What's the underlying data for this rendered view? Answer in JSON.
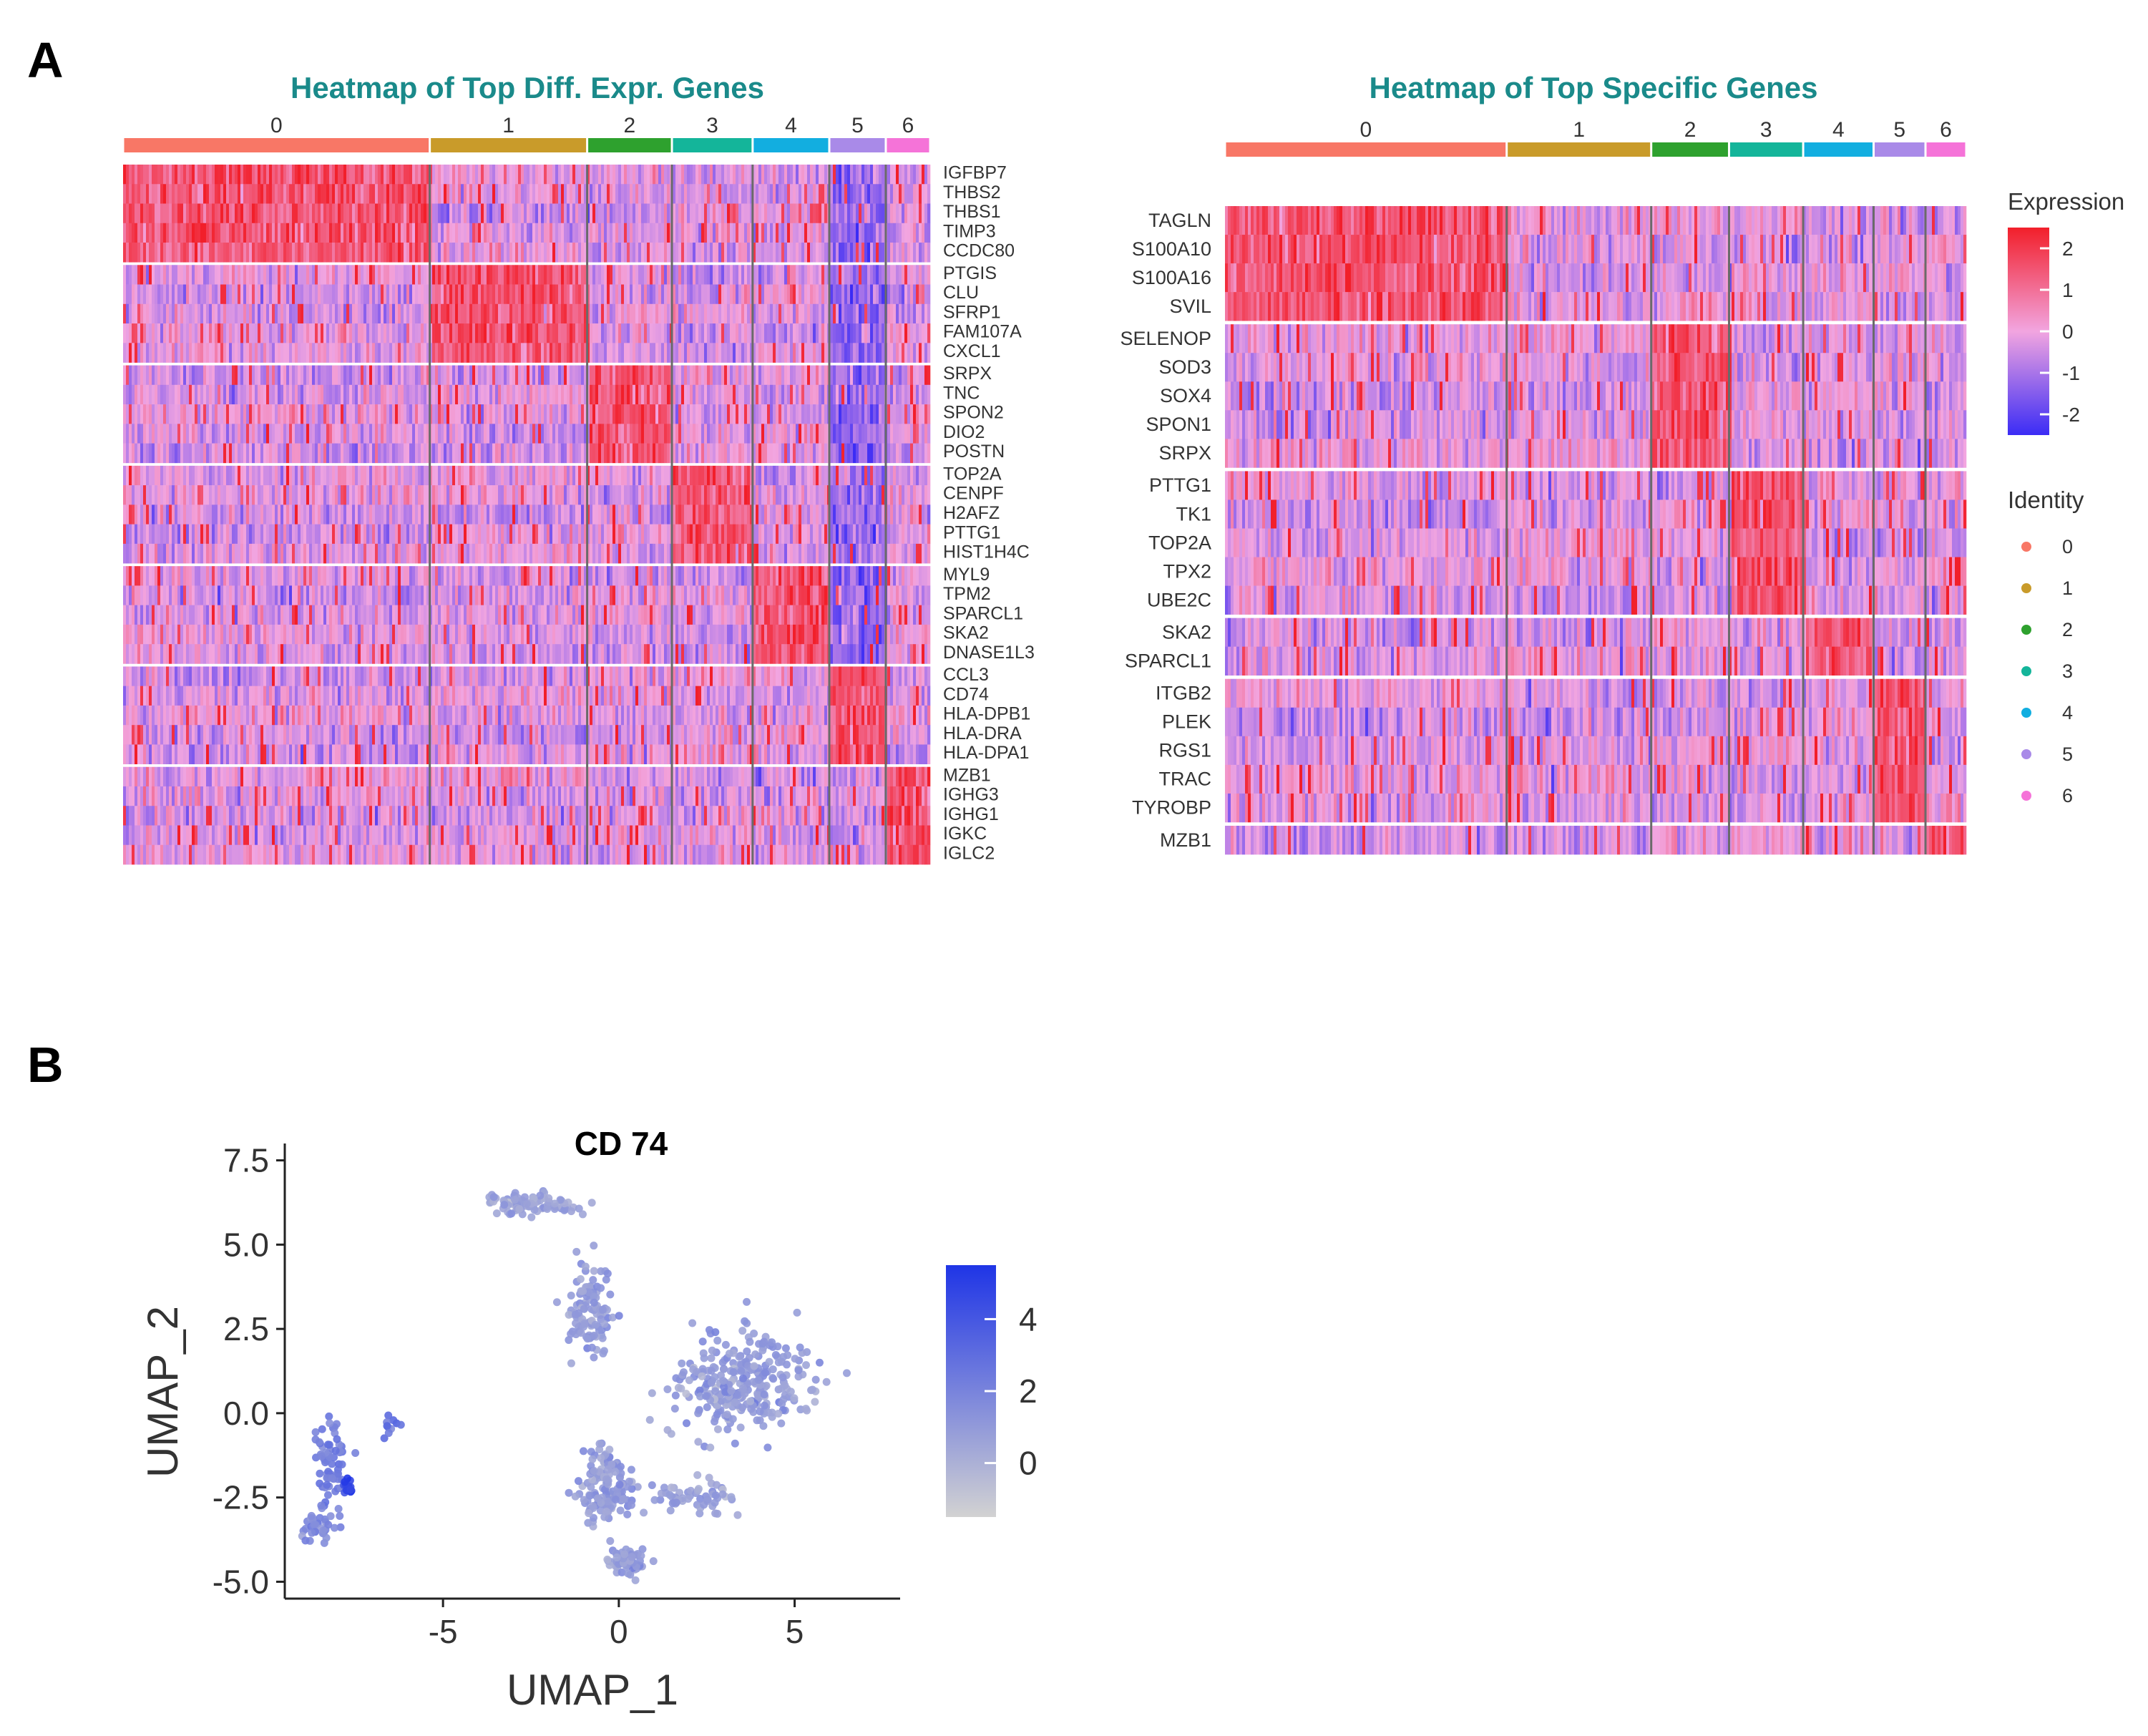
{
  "panels": {
    "a_label": "A",
    "b_label": "B"
  },
  "colors": {
    "low": "#3b2cf5",
    "mid": "#f2a5e0",
    "high": "#f21f2a",
    "title": "#1a8a8a",
    "identity": [
      "#f87766",
      "#c99b2a",
      "#2ea12e",
      "#14b59a",
      "#12aee0",
      "#a98ae8",
      "#f573d8"
    ],
    "scale_low": "#d2d2d2",
    "scale_high": "#1f35e6"
  },
  "chart_data": [
    {
      "type": "heatmap",
      "title": "Heatmap of Top Diff. Expr. Genes",
      "clusters": [
        "0",
        "1",
        "2",
        "3",
        "4",
        "5",
        "6"
      ],
      "cluster_fraction": [
        0.38,
        0.195,
        0.105,
        0.1,
        0.095,
        0.07,
        0.055
      ],
      "genes": [
        "IGFBP7",
        "THBS2",
        "THBS1",
        "TIMP3",
        "CCDC80",
        "PTGIS",
        "CLU",
        "SFRP1",
        "FAM107A",
        "CXCL1",
        "SRPX",
        "TNC",
        "SPON2",
        "DIO2",
        "POSTN",
        "TOP2A",
        "CENPF",
        "H2AFZ",
        "PTTG1",
        "HIST1H4C",
        "MYL9",
        "TPM2",
        "SPARCL1",
        "SKA2",
        "DNASE1L3",
        "CCL3",
        "CD74",
        "HLA-DPB1",
        "HLA-DRA",
        "HLA-DPA1",
        "MZB1",
        "IGHG3",
        "IGHG1",
        "IGKC",
        "IGLC2"
      ],
      "gene_groups": [
        5,
        5,
        5,
        5,
        5,
        5,
        5
      ],
      "group_markers": [
        0,
        1,
        2,
        3,
        4,
        5,
        6
      ],
      "value_range": [
        -2.5,
        2.5
      ]
    },
    {
      "type": "heatmap",
      "title": "Heatmap of Top Specific Genes",
      "clusters": [
        "0",
        "1",
        "2",
        "3",
        "4",
        "5",
        "6"
      ],
      "cluster_fraction": [
        0.38,
        0.195,
        0.105,
        0.1,
        0.095,
        0.07,
        0.055
      ],
      "genes": [
        "TAGLN",
        "S100A10",
        "S100A16",
        "SVIL",
        "SELENOP",
        "SOD3",
        "SOX4",
        "SPON1",
        "SRPX",
        "PTTG1",
        "TK1",
        "TOP2A",
        "TPX2",
        "UBE2C",
        "SKA2",
        "SPARCL1",
        "ITGB2",
        "PLEK",
        "RGS1",
        "TRAC",
        "TYROBP",
        "MZB1"
      ],
      "gene_groups": [
        4,
        5,
        5,
        2,
        5,
        1
      ],
      "group_markers": [
        0,
        2,
        3,
        4,
        5,
        6
      ],
      "value_range": [
        -2.5,
        2.5
      ],
      "legend": {
        "expression_title": "Expression",
        "expression_ticks": [
          "2",
          "1",
          "0",
          "-1",
          "-2"
        ],
        "identity_title": "Identity",
        "identity_labels": [
          "0",
          "1",
          "2",
          "3",
          "4",
          "5",
          "6"
        ]
      }
    },
    {
      "type": "scatter",
      "title": "CD 74",
      "xlabel": "UMAP_1",
      "ylabel": "UMAP_2",
      "xlim": [
        -9.5,
        8
      ],
      "ylim": [
        -5.5,
        8
      ],
      "xticks": [
        -5,
        0,
        5
      ],
      "xtick_labels": [
        "-5",
        "0",
        "5"
      ],
      "yticks": [
        -5,
        -2.5,
        0,
        2.5,
        5,
        7.5
      ],
      "ytick_labels": [
        "-5.0",
        "-2.5",
        "0.0",
        "2.5",
        "5.0",
        "7.5"
      ],
      "color_legend": {
        "ticks": [
          0,
          2,
          4
        ],
        "labels": [
          "0",
          "2",
          "4"
        ],
        "range": [
          -1.5,
          5.5
        ]
      },
      "clusters": [
        {
          "name": "top-left arc",
          "x": -2.5,
          "y": 6.2,
          "sx": 1.0,
          "sy": 0.25,
          "n": 90,
          "expr": 0.6
        },
        {
          "name": "upper stem",
          "x": -0.8,
          "y": 3.0,
          "sx": 0.55,
          "sy": 1.2,
          "n": 110,
          "expr": 0.9
        },
        {
          "name": "right lobe",
          "x": 3.6,
          "y": 0.9,
          "sx": 1.7,
          "sy": 1.3,
          "n": 300,
          "expr": 0.9
        },
        {
          "name": "bridge",
          "x": 2.0,
          "y": -2.5,
          "sx": 1.1,
          "sy": 0.5,
          "n": 60,
          "expr": 0.8
        },
        {
          "name": "lower arm",
          "x": -0.4,
          "y": -2.2,
          "sx": 0.7,
          "sy": 1.0,
          "n": 130,
          "expr": 0.9
        },
        {
          "name": "bottom tail",
          "x": 0.2,
          "y": -4.4,
          "sx": 0.5,
          "sy": 0.35,
          "n": 55,
          "expr": 0.8
        },
        {
          "name": "left cluster",
          "x": -8.2,
          "y": -1.6,
          "sx": 0.4,
          "sy": 1.3,
          "n": 70,
          "expr": 2.2
        },
        {
          "name": "left tail",
          "x": -8.6,
          "y": -3.4,
          "sx": 0.35,
          "sy": 0.35,
          "n": 30,
          "expr": 1.8
        },
        {
          "name": "left hotspot",
          "x": -7.7,
          "y": -2.2,
          "sx": 0.15,
          "sy": 0.15,
          "n": 16,
          "expr": 5.0
        },
        {
          "name": "small satellite",
          "x": -6.5,
          "y": -0.4,
          "sx": 0.2,
          "sy": 0.2,
          "n": 10,
          "expr": 2.8
        }
      ]
    }
  ]
}
